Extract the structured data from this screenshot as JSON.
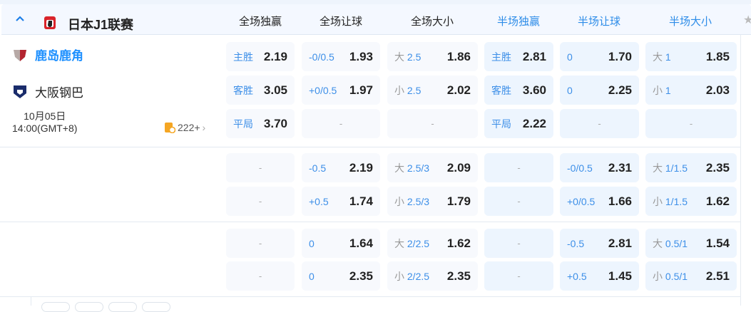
{
  "league": {
    "name": "日本J1联赛",
    "icon": "j-league-logo"
  },
  "columns": [
    {
      "label": "全场独赢",
      "half": false
    },
    {
      "label": "全场让球",
      "half": false
    },
    {
      "label": "全场大小",
      "half": false
    },
    {
      "label": "半场独赢",
      "half": true
    },
    {
      "label": "半场让球",
      "half": true
    },
    {
      "label": "半场大小",
      "half": true
    }
  ],
  "match": {
    "home": {
      "name": "鹿岛鹿角",
      "color": "#1e90ff"
    },
    "away": {
      "name": "大阪钢巴"
    },
    "date": "10月05日",
    "time": "14:00(GMT+8)",
    "more_markets": "222+"
  },
  "sections": [
    [
      [
        {
          "l": "主胜",
          "v": "2.19"
        },
        {
          "l": "-0/0.5",
          "v": "1.93"
        },
        {
          "g": "大",
          "l": "2.5",
          "v": "1.86"
        },
        {
          "l": "主胜",
          "v": "2.81"
        },
        {
          "l": "0",
          "v": "1.70"
        },
        {
          "g": "大",
          "l": "1",
          "v": "1.85"
        }
      ],
      [
        {
          "l": "客胜",
          "v": "3.05"
        },
        {
          "l": "+0/0.5",
          "v": "1.97"
        },
        {
          "g": "小",
          "l": "2.5",
          "v": "2.02"
        },
        {
          "l": "客胜",
          "v": "3.60"
        },
        {
          "l": "0",
          "v": "2.25"
        },
        {
          "g": "小",
          "l": "1",
          "v": "2.03"
        }
      ],
      [
        {
          "l": "平局",
          "v": "3.70"
        },
        null,
        null,
        {
          "l": "平局",
          "v": "2.22"
        },
        null,
        null
      ]
    ],
    [
      [
        null,
        {
          "l": "-0.5",
          "v": "2.19"
        },
        {
          "g": "大",
          "l": "2.5/3",
          "v": "2.09"
        },
        null,
        {
          "l": "-0/0.5",
          "v": "2.31"
        },
        {
          "g": "大",
          "l": "1/1.5",
          "v": "2.35"
        }
      ],
      [
        null,
        {
          "l": "+0.5",
          "v": "1.74"
        },
        {
          "g": "小",
          "l": "2.5/3",
          "v": "1.79"
        },
        null,
        {
          "l": "+0/0.5",
          "v": "1.66"
        },
        {
          "g": "小",
          "l": "1/1.5",
          "v": "1.62"
        }
      ]
    ],
    [
      [
        null,
        {
          "l": "0",
          "v": "1.64"
        },
        {
          "g": "大",
          "l": "2/2.5",
          "v": "1.62"
        },
        null,
        {
          "l": "-0.5",
          "v": "2.81"
        },
        {
          "g": "大",
          "l": "0.5/1",
          "v": "1.54"
        }
      ],
      [
        null,
        {
          "l": "0",
          "v": "2.35"
        },
        {
          "g": "小",
          "l": "2/2.5",
          "v": "2.35"
        },
        null,
        {
          "l": "+0.5",
          "v": "1.45"
        },
        {
          "g": "小",
          "l": "0.5/1",
          "v": "2.51"
        }
      ]
    ]
  ],
  "empty": "-"
}
